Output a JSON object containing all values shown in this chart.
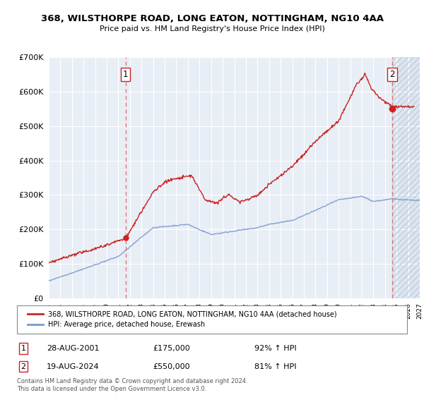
{
  "title1": "368, WILSTHORPE ROAD, LONG EATON, NOTTINGHAM, NG10 4AA",
  "title2": "Price paid vs. HM Land Registry's House Price Index (HPI)",
  "ylim": [
    0,
    700000
  ],
  "yticks": [
    0,
    100000,
    200000,
    300000,
    400000,
    500000,
    600000,
    700000
  ],
  "ytick_labels": [
    "£0",
    "£100K",
    "£200K",
    "£300K",
    "£400K",
    "£500K",
    "£600K",
    "£700K"
  ],
  "year_start": 1995,
  "year_end": 2027,
  "transaction1_date": 2001.63,
  "transaction1_price": 175000,
  "transaction2_date": 2024.63,
  "transaction2_price": 550000,
  "legend_line1": "368, WILSTHORPE ROAD, LONG EATON, NOTTINGHAM, NG10 4AA (detached house)",
  "legend_line2": "HPI: Average price, detached house, Erewash",
  "transaction1_text": "28-AUG-2001",
  "transaction1_amount": "£175,000",
  "transaction1_hpi": "92% ↑ HPI",
  "transaction2_text": "19-AUG-2024",
  "transaction2_amount": "£550,000",
  "transaction2_hpi": "81% ↑ HPI",
  "footer": "Contains HM Land Registry data © Crown copyright and database right 2024.\nThis data is licensed under the Open Government Licence v3.0.",
  "bg_color": "#e8eef5",
  "grid_color": "#ffffff",
  "hpi_line_color": "#7799cc",
  "price_line_color": "#cc2222",
  "dashed_line_color": "#dd6666"
}
